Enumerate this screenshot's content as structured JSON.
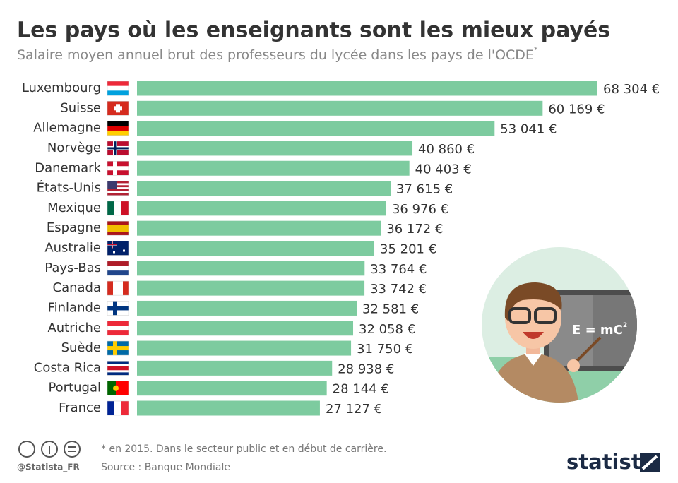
{
  "chart_data": {
    "type": "bar",
    "orientation": "horizontal",
    "title": "Les pays où les enseignants sont les mieux payés",
    "subtitle": "Salaire moyen annuel brut des professeurs du lycée dans les pays de l'OCDE",
    "subtitle_mark": "*",
    "categories": [
      "Luxembourg",
      "Suisse",
      "Allemagne",
      "Norvège",
      "Danemark",
      "États-Unis",
      "Mexique",
      "Espagne",
      "Australie",
      "Pays-Bas",
      "Canada",
      "Finlande",
      "Autriche",
      "Suède",
      "Costa Rica",
      "Portugal",
      "France"
    ],
    "values": [
      68304,
      60169,
      53041,
      40860,
      40403,
      37615,
      36976,
      36172,
      35201,
      33764,
      33742,
      32581,
      32058,
      31750,
      28938,
      28144,
      27127
    ],
    "value_labels": [
      "68 304 €",
      "60 169 €",
      "53 041 €",
      "40 860 €",
      "40 403 €",
      "37 615 €",
      "36 976 €",
      "36 172 €",
      "35 201 €",
      "33 764 €",
      "33 742 €",
      "32 581 €",
      "32 058 €",
      "31 750 €",
      "28 938 €",
      "28 144 €",
      "27 127 €"
    ],
    "color": "#7dcb9f"
  },
  "illustration": {
    "board_text": "E = mC",
    "board_sup": "2"
  },
  "footer": {
    "footnote": "* en 2015. Dans le secteur public et en début de carrière.",
    "source": "Source : Banque Mondiale",
    "credit": "@Statista_FR",
    "brand": "statista"
  }
}
